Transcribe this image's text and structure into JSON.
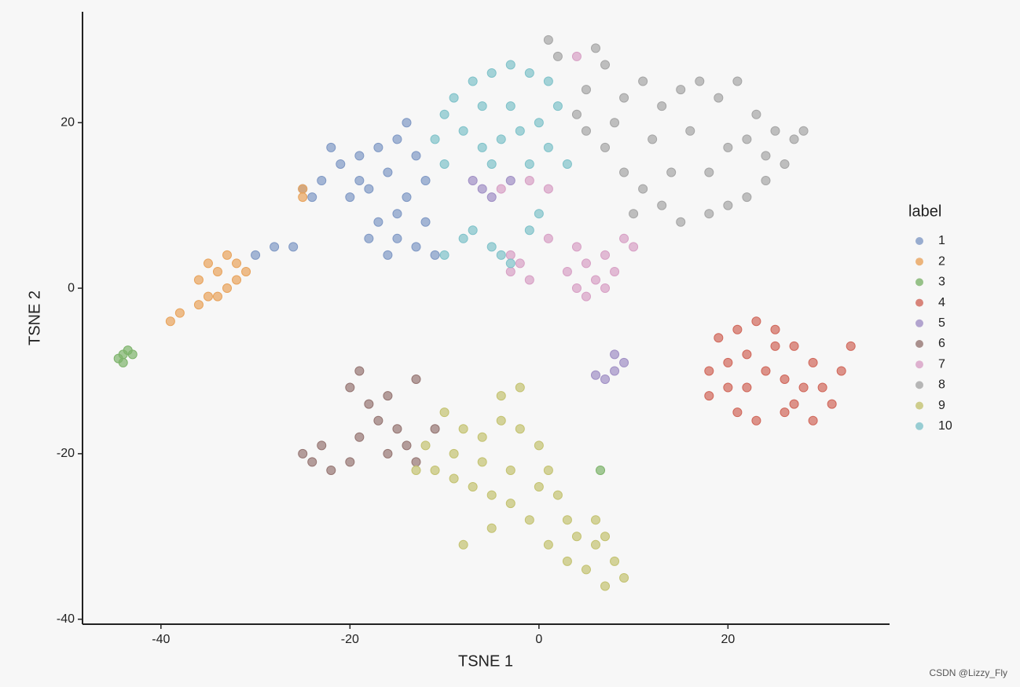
{
  "chart_data": {
    "type": "scatter",
    "xlabel": "TSNE 1",
    "ylabel": "TSNE 2",
    "legend_title": "label",
    "legend_position": "right",
    "watermark": "CSDN @Lizzy_Fly",
    "xlim": [
      -48.3,
      37.1
    ],
    "ylim": [
      -40.6,
      33.4
    ],
    "xticks": [
      -40,
      -20,
      0,
      20
    ],
    "yticks": [
      -40,
      -20,
      0,
      20
    ],
    "grid": false,
    "series": [
      {
        "name": "1",
        "color": "#7f98c4",
        "x": [
          -23,
          -21,
          -19,
          -17,
          -15,
          -14,
          -13,
          -16,
          -18,
          -20,
          -24,
          -22,
          -12,
          -14,
          -17,
          -15,
          -13,
          -11,
          -16,
          -18,
          -12,
          -28,
          -26,
          -30,
          -25,
          -19,
          -15
        ],
        "y": [
          13,
          15,
          16,
          17,
          18,
          20,
          16,
          14,
          12,
          11,
          11,
          17,
          13,
          11,
          8,
          6,
          5,
          4,
          4,
          6,
          8,
          5,
          5,
          4,
          12,
          13,
          9
        ]
      },
      {
        "name": "2",
        "color": "#e8a35b",
        "x": [
          -36,
          -34,
          -32,
          -33,
          -35,
          -31,
          -34,
          -36,
          -33,
          -32,
          -35,
          -39,
          -38,
          -25,
          -25
        ],
        "y": [
          1,
          2,
          3,
          0,
          -1,
          2,
          -1,
          -2,
          4,
          1,
          3,
          -4,
          -3,
          11,
          12
        ]
      },
      {
        "name": "3",
        "color": "#7db36b",
        "x": [
          -44,
          -43,
          -44,
          -43.5,
          -44.5,
          6.5
        ],
        "y": [
          -8,
          -8,
          -9,
          -7.5,
          -8.5,
          -22
        ]
      },
      {
        "name": "4",
        "color": "#d0675a",
        "x": [
          19,
          21,
          23,
          25,
          27,
          29,
          30,
          31,
          29,
          26,
          23,
          21,
          18,
          18,
          20,
          22,
          24,
          26,
          28,
          22,
          25,
          20,
          33,
          32,
          27
        ],
        "y": [
          -6,
          -5,
          -4,
          -5,
          -7,
          -9,
          -12,
          -14,
          -16,
          -15,
          -16,
          -15,
          -13,
          -10,
          -9,
          -8,
          -10,
          -11,
          -12,
          -12,
          -7,
          -12,
          -7,
          -10,
          -14
        ]
      },
      {
        "name": "5",
        "color": "#a08fc4",
        "x": [
          8,
          8,
          7,
          6,
          9,
          -6,
          -3,
          -7,
          -5
        ],
        "y": [
          -8,
          -10,
          -11,
          -10.5,
          -9,
          12,
          13,
          13,
          11
        ]
      },
      {
        "name": "6",
        "color": "#957572",
        "x": [
          -19,
          -20,
          -18,
          -16,
          -17,
          -15,
          -14,
          -13,
          -16,
          -19,
          -25,
          -23,
          -24,
          -22,
          -20,
          -13,
          -11
        ],
        "y": [
          -10,
          -12,
          -14,
          -13,
          -16,
          -17,
          -19,
          -21,
          -20,
          -18,
          -20,
          -19,
          -21,
          -22,
          -21,
          -11,
          -17
        ]
      },
      {
        "name": "7",
        "color": "#d79fc4",
        "x": [
          -3,
          -2,
          -3,
          -1,
          3,
          5,
          6,
          7,
          5,
          4,
          8,
          7,
          4,
          1,
          9,
          10,
          -4,
          -1,
          1,
          4
        ],
        "y": [
          4,
          3,
          2,
          1,
          2,
          3,
          1,
          0,
          -1,
          0,
          2,
          4,
          5,
          6,
          6,
          5,
          12,
          13,
          12,
          28
        ]
      },
      {
        "name": "8",
        "color": "#a5a5a5",
        "x": [
          5,
          7,
          9,
          11,
          13,
          15,
          17,
          19,
          21,
          23,
          25,
          27,
          28,
          26,
          24,
          22,
          20,
          18,
          15,
          13,
          11,
          9,
          7,
          5,
          8,
          12,
          16,
          20,
          24,
          14,
          18,
          22,
          10,
          4,
          2,
          1,
          6
        ],
        "y": [
          24,
          27,
          23,
          25,
          22,
          24,
          25,
          23,
          25,
          21,
          19,
          18,
          19,
          15,
          13,
          11,
          10,
          9,
          8,
          10,
          12,
          14,
          17,
          19,
          20,
          18,
          19,
          17,
          16,
          14,
          14,
          18,
          9,
          21,
          28,
          30,
          29
        ]
      },
      {
        "name": "9",
        "color": "#c3c270",
        "x": [
          -10,
          -8,
          -6,
          -4,
          -2,
          0,
          1,
          2,
          3,
          4,
          6,
          8,
          9,
          7,
          5,
          3,
          1,
          -1,
          -3,
          -5,
          -7,
          -9,
          -11,
          -13,
          -12,
          -9,
          -6,
          -3,
          0,
          -4,
          -8,
          -2,
          6,
          7,
          -5
        ],
        "y": [
          -15,
          -17,
          -18,
          -16,
          -17,
          -19,
          -22,
          -25,
          -28,
          -30,
          -31,
          -33,
          -35,
          -36,
          -34,
          -33,
          -31,
          -28,
          -26,
          -25,
          -24,
          -23,
          -22,
          -22,
          -19,
          -20,
          -21,
          -22,
          -24,
          -13,
          -31,
          -12,
          -28,
          -30,
          -29
        ]
      },
      {
        "name": "10",
        "color": "#7fc2c9",
        "x": [
          -11,
          -10,
          -9,
          -7,
          -5,
          -3,
          -1,
          1,
          2,
          0,
          -2,
          -4,
          -6,
          -8,
          -3,
          -6,
          1,
          3,
          -1,
          -5,
          -10,
          -8,
          -7,
          -5,
          -4,
          -3,
          -1,
          0,
          -10
        ],
        "y": [
          18,
          21,
          23,
          25,
          26,
          27,
          26,
          25,
          22,
          20,
          19,
          18,
          17,
          19,
          22,
          22,
          17,
          15,
          15,
          15,
          15,
          6,
          7,
          5,
          4,
          3,
          7,
          9,
          4
        ]
      }
    ]
  }
}
